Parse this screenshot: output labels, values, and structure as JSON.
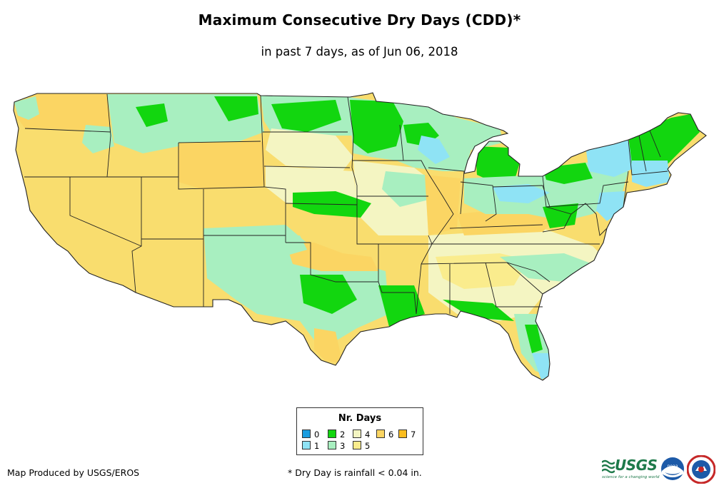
{
  "title": "Maximum Consecutive Dry Days (CDD)*",
  "subtitle": "in past 7 days, as of Jun 06, 2018",
  "legend": {
    "title": "Nr. Days",
    "items": [
      {
        "label": "0",
        "color": "#1a9de0"
      },
      {
        "label": "1",
        "color": "#8fe3f5"
      },
      {
        "label": "2",
        "color": "#12d60f"
      },
      {
        "label": "3",
        "color": "#a8efc0"
      },
      {
        "label": "4",
        "color": "#f4f5c2"
      },
      {
        "label": "5",
        "color": "#faec8d"
      },
      {
        "label": "6",
        "color": "#fbd563"
      },
      {
        "label": "7",
        "color": "#fbbd1f"
      }
    ]
  },
  "footer": {
    "producer": "Map Produced by USGS/EROS",
    "note": "* Dry Day is rainfall < 0.04 in."
  },
  "logos": {
    "usgs_text": "USGS",
    "usgs_tagline": "science for a changing world",
    "noaa_text": "noaa"
  },
  "colors": {
    "background": "#ffffff",
    "border": "#222222",
    "usgs_green": "#1e7a4a",
    "noaa_blue": "#1d5aa8",
    "nws_red": "#c62828"
  }
}
